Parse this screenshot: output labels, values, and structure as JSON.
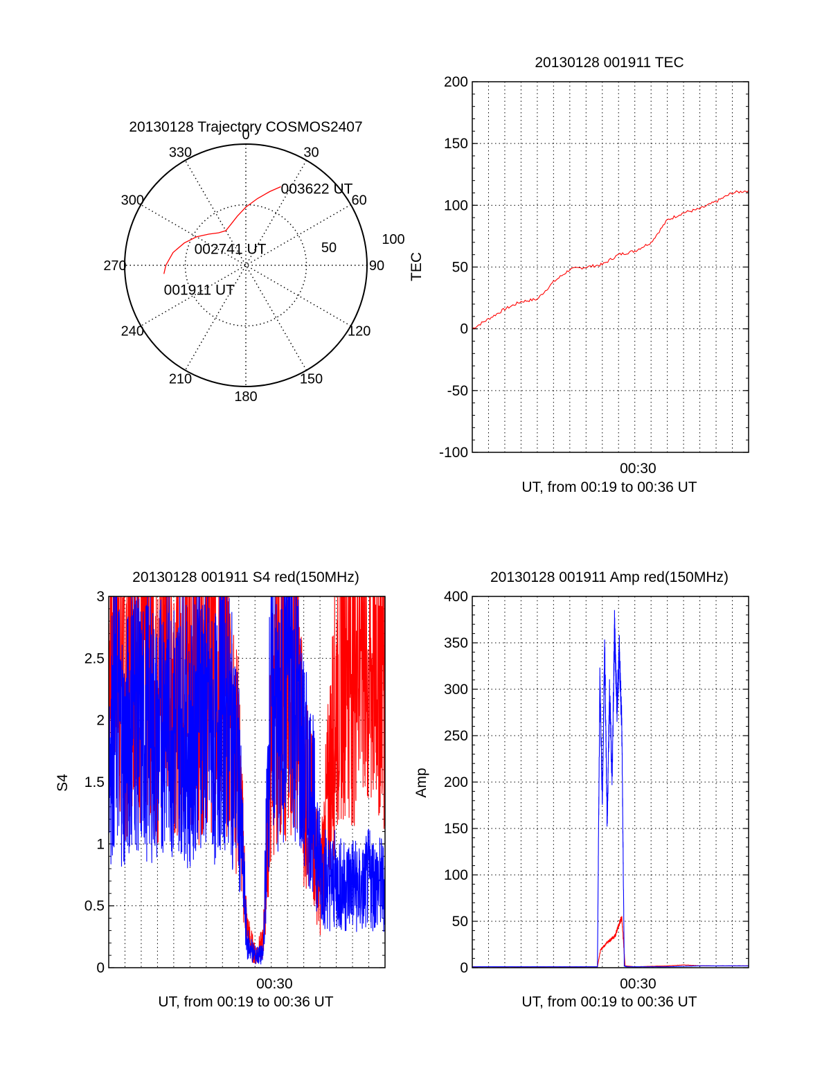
{
  "colors": {
    "red": "#ff0000",
    "blue": "#0000ff",
    "axis": "#000000",
    "grid": "#000000"
  },
  "chart_data": [
    {
      "type": "polar",
      "title": "20130128 Trajectory COSMOS2407",
      "azimuth_labels": [
        "0",
        "30",
        "60",
        "90",
        "120",
        "150",
        "180",
        "210",
        "240",
        "270",
        "300",
        "330"
      ],
      "radial_labels": [
        "50",
        "100"
      ],
      "radial_max": 100,
      "trajectory": [
        [
          264,
          68
        ],
        [
          270,
          66
        ],
        [
          280,
          61
        ],
        [
          290,
          54
        ],
        [
          300,
          47
        ],
        [
          310,
          40
        ],
        [
          320,
          35
        ],
        [
          330,
          33
        ],
        [
          340,
          36
        ],
        [
          350,
          41
        ],
        [
          0,
          48
        ],
        [
          10,
          56
        ],
        [
          18,
          64
        ],
        [
          24,
          71
        ]
      ],
      "point_labels": [
        {
          "text": "001911 UT",
          "az": 264,
          "r": 68
        },
        {
          "text": "002741 UT",
          "az": 335,
          "r": 33
        },
        {
          "text": "003622 UT",
          "az": 24,
          "r": 71
        }
      ],
      "grid": true
    },
    {
      "type": "line",
      "title": "20130128 001911 TEC",
      "ylabel": "TEC",
      "xlabel": "UT, from 00:19 to 00:36 UT",
      "x_tick": "00:30",
      "x_tick_fraction": 0.6,
      "x_range_minutes": [
        0,
        17
      ],
      "ylim": [
        -100,
        200
      ],
      "y_ticks": [
        "200",
        "150",
        "100",
        "50",
        "0",
        "-50",
        "-100"
      ],
      "grid": true,
      "series": [
        {
          "color": "red",
          "x": [
            0,
            1,
            2,
            3,
            4,
            5,
            6,
            7,
            8,
            9,
            10,
            11,
            12,
            13,
            14,
            15,
            16,
            17
          ],
          "values": [
            0,
            8,
            16,
            22,
            24,
            38,
            48,
            50,
            52,
            60,
            63,
            70,
            88,
            94,
            97,
            103,
            110,
            112
          ]
        }
      ]
    },
    {
      "type": "line",
      "title": "20130128 001911 S4 red(150MHz)",
      "ylabel": "S4",
      "xlabel": "UT, from 00:19 to 00:36 UT",
      "x_tick": "00:30",
      "x_tick_fraction": 0.6,
      "ylim": [
        0,
        3
      ],
      "y_ticks": [
        "3",
        "2.5",
        "2",
        "1.5",
        "1",
        "0.5",
        "0"
      ],
      "grid": true,
      "series": [
        {
          "color": "red",
          "x": [
            0,
            0.5,
            1,
            1.5,
            2,
            2.5,
            3,
            3.5,
            4,
            4.5,
            5,
            5.5,
            6,
            6.5,
            7,
            7.5,
            8,
            8.5,
            9,
            9.5,
            10,
            10.5,
            11,
            11.5,
            12,
            12.5,
            13,
            13.5,
            14,
            14.5,
            15,
            15.5,
            16,
            16.5,
            17
          ],
          "values": [
            2.6,
            2.8,
            2.2,
            2.9,
            2.4,
            2.7,
            2.1,
            2.8,
            2.5,
            2.3,
            2.7,
            2.2,
            2.6,
            2.4,
            2.8,
            2.0,
            1.6,
            0.3,
            0.1,
            0.2,
            1.8,
            2.4,
            2.2,
            2.6,
            1.5,
            1.2,
            0.6,
            1.4,
            2.2,
            2.8,
            2.5,
            2.9,
            2.3,
            2.7,
            2.4
          ]
        },
        {
          "color": "blue",
          "x": [
            0,
            0.5,
            1,
            1.5,
            2,
            2.5,
            3,
            3.5,
            4,
            4.5,
            5,
            5.5,
            6,
            6.5,
            7,
            7.5,
            8,
            8.5,
            9,
            9.5,
            10,
            10.5,
            11,
            11.5,
            12,
            12.5,
            13,
            13.5,
            14,
            14.5,
            15,
            15.5,
            16,
            16.5,
            17
          ],
          "values": [
            1.8,
            2.1,
            1.7,
            2.2,
            1.9,
            2.0,
            1.8,
            2.2,
            1.9,
            2.1,
            1.7,
            2.3,
            2.0,
            1.8,
            2.2,
            1.9,
            1.5,
            0.2,
            0.1,
            0.1,
            2.4,
            1.8,
            2.6,
            2.2,
            1.6,
            1.4,
            0.8,
            0.7,
            0.7,
            0.65,
            0.7,
            0.6,
            0.72,
            0.68,
            0.66
          ]
        }
      ]
    },
    {
      "type": "line",
      "title": "20130128 001911 Amp red(150MHz)",
      "ylabel": "Amp",
      "xlabel": "UT, from 00:19 to 00:36 UT",
      "x_tick": "00:30",
      "x_tick_fraction": 0.6,
      "ylim": [
        0,
        400
      ],
      "y_ticks": [
        "400",
        "350",
        "300",
        "250",
        "200",
        "150",
        "100",
        "50",
        "0"
      ],
      "grid": true,
      "series": [
        {
          "color": "red",
          "x": [
            0,
            4,
            7.7,
            7.9,
            8.2,
            8.5,
            8.8,
            9.0,
            9.2,
            9.4,
            10,
            12,
            13,
            14,
            17
          ],
          "values": [
            1,
            1,
            1,
            20,
            25,
            30,
            35,
            45,
            55,
            2,
            1,
            2,
            3,
            2,
            2
          ]
        },
        {
          "color": "blue",
          "x": [
            0,
            4,
            7.7,
            7.85,
            8.0,
            8.15,
            8.3,
            8.45,
            8.6,
            8.75,
            8.9,
            9.05,
            9.2,
            9.35,
            9.5,
            10,
            12,
            14,
            17
          ],
          "values": [
            1,
            1,
            1,
            310,
            180,
            345,
            150,
            300,
            200,
            365,
            280,
            340,
            260,
            2,
            1,
            1,
            1,
            2,
            2
          ]
        }
      ]
    }
  ]
}
